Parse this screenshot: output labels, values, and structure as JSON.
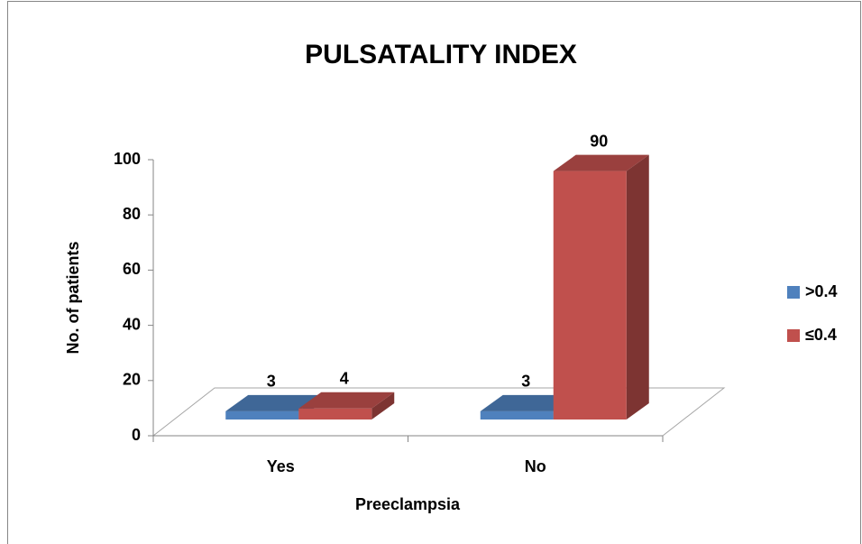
{
  "chart_data": {
    "type": "bar3d",
    "title": "PULSATALITY INDEX",
    "x_label": "Preeclampsia",
    "y_label": "No. of patients",
    "categories": [
      "Yes",
      "No"
    ],
    "series": [
      {
        "name": ">0.4",
        "color": "#4f81bd",
        "values": [
          3,
          3
        ]
      },
      {
        "name": "≤0.4",
        "color": "#c0504d",
        "values": [
          4,
          90
        ]
      }
    ],
    "ylim": [
      0,
      100
    ],
    "yticks": [
      0,
      20,
      40,
      60,
      80,
      100
    ],
    "legend": "right"
  }
}
